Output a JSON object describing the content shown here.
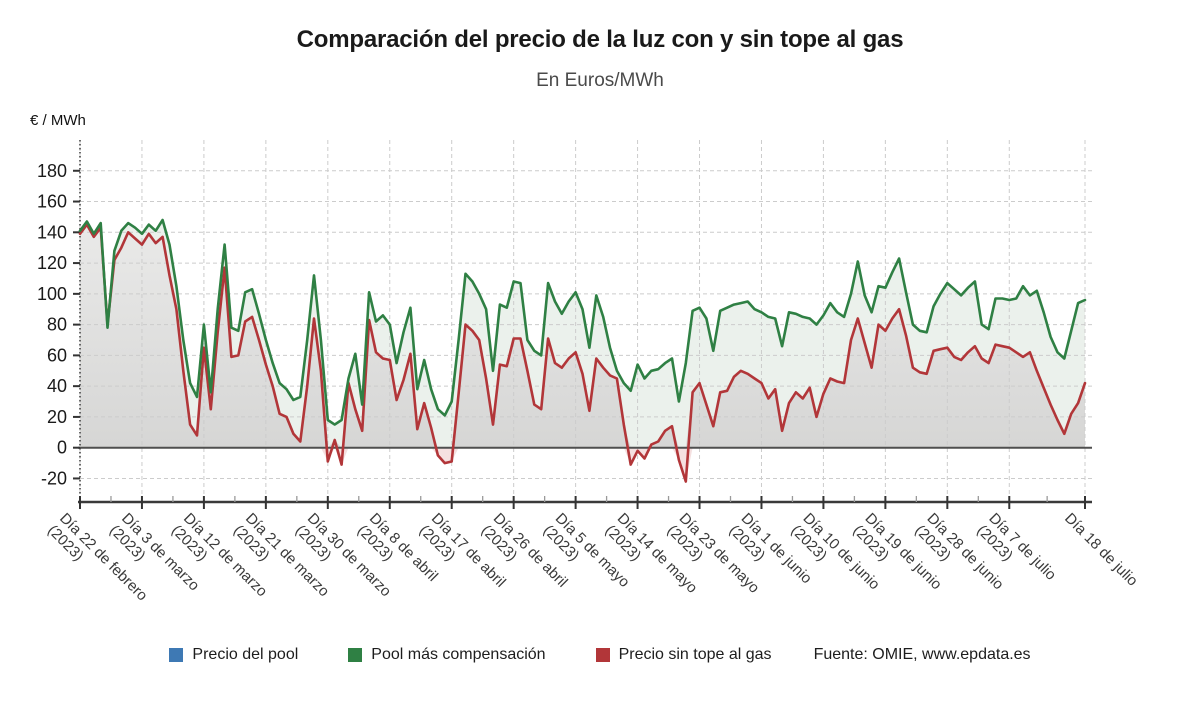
{
  "page": {
    "title": "Comparación del precio de la luz con y sin tope al gas",
    "subtitle": "En Euros/MWh",
    "unit_label": "€ / MWh"
  },
  "legend": {
    "items": [
      {
        "label": "Precio del pool",
        "color": "#3e79b4"
      },
      {
        "label": "Pool más compensación",
        "color": "#2f8044"
      },
      {
        "label": "Precio sin tope al gas",
        "color": "#b23639"
      }
    ],
    "source": "Fuente: OMIE, www.epdata.es"
  },
  "colors": {
    "grid": "#cccccc",
    "axis": "#3a3a3a",
    "zero_line": "#4f4f4f",
    "tick_label": "#1a1a1a",
    "x_label": "#3a3a3a",
    "fill_between": "#ebf1ec",
    "fill_under_red_top": "#f1f1f0",
    "fill_under_red_bottom": "#d6d6d5",
    "fill_negative": "#f5e0e0"
  },
  "chart_data": {
    "type": "line",
    "title": "Comparación del precio de la luz con y sin tope al gas",
    "subtitle": "En Euros/MWh",
    "ylabel": "€ / MWh",
    "ylim": [
      -34,
      200
    ],
    "grid": true,
    "legend_position": "bottom",
    "y_ticks": [
      180,
      160,
      140,
      120,
      100,
      80,
      60,
      40,
      20,
      0,
      -20
    ],
    "x_range_days": 146,
    "x_ticks": [
      {
        "day": 0,
        "label": "Día 22 de febrero",
        "year": "(2023)"
      },
      {
        "day": 9,
        "label": "Día 3 de marzo",
        "year": "(2023)"
      },
      {
        "day": 18,
        "label": "Día 12 de marzo",
        "year": "(2023)"
      },
      {
        "day": 27,
        "label": "Día 21 de marzo",
        "year": "(2023)"
      },
      {
        "day": 36,
        "label": "Día 30 de marzo",
        "year": "(2023)"
      },
      {
        "day": 45,
        "label": "Día 8 de abril",
        "year": "(2023)"
      },
      {
        "day": 54,
        "label": "Día 17 de abril",
        "year": "(2023)"
      },
      {
        "day": 63,
        "label": "Día 26 de abril",
        "year": "(2023)"
      },
      {
        "day": 72,
        "label": "Día 5 de mayo",
        "year": "(2023)"
      },
      {
        "day": 81,
        "label": "Día 14 de mayo",
        "year": "(2023)"
      },
      {
        "day": 90,
        "label": "Día 23 de mayo",
        "year": "(2023)"
      },
      {
        "day": 99,
        "label": "Día 1 de junio",
        "year": "(2023)"
      },
      {
        "day": 108,
        "label": "Día 10 de junio",
        "year": "(2023)"
      },
      {
        "day": 117,
        "label": "Día 19 de junio",
        "year": "(2023)"
      },
      {
        "day": 126,
        "label": "Día 28 de junio",
        "year": "(2023)"
      },
      {
        "day": 135,
        "label": "Día 7 de julio",
        "year": "(2023)"
      },
      {
        "day": 146,
        "label": "Día 18 de julio",
        "year": ""
      }
    ],
    "legend_only_series": [
      {
        "name": "Precio del pool",
        "color": "#3e79b4"
      }
    ],
    "series": [
      {
        "name": "Pool más compensación",
        "color": "#2f8044",
        "values": [
          141,
          147,
          139,
          146,
          78,
          128,
          141,
          146,
          143,
          139,
          145,
          141,
          148,
          132,
          105,
          70,
          42,
          33,
          80,
          36,
          90,
          132,
          78,
          76,
          101,
          103,
          87,
          70,
          55,
          42,
          38,
          31,
          33,
          70,
          112,
          70,
          18,
          15,
          18,
          45,
          61,
          28,
          101,
          82,
          86,
          80,
          55,
          75,
          91,
          38,
          57,
          38,
          25,
          21,
          30,
          70,
          113,
          108,
          100,
          90,
          50,
          93,
          91,
          108,
          107,
          70,
          63,
          60,
          107,
          95,
          87,
          95,
          101,
          90,
          65,
          99,
          85,
          65,
          50,
          42,
          37,
          54,
          45,
          50,
          51,
          55,
          58,
          30,
          55,
          89,
          91,
          84,
          63,
          89,
          91,
          93,
          94,
          95,
          90,
          88,
          85,
          84,
          66,
          88,
          87,
          85,
          84,
          80,
          86,
          94,
          88,
          85,
          100,
          121,
          99,
          88,
          105,
          104,
          114,
          123,
          101,
          80,
          76,
          75,
          92,
          100,
          107,
          103,
          99,
          104,
          108,
          80,
          77,
          97,
          97,
          96,
          97,
          105,
          99,
          102,
          88,
          72,
          62,
          58,
          76,
          94,
          96
        ]
      },
      {
        "name": "Precio sin tope al gas",
        "color": "#b23639",
        "values": [
          139,
          145,
          137,
          143,
          80,
          122,
          130,
          140,
          136,
          132,
          139,
          133,
          137,
          112,
          90,
          50,
          15,
          8,
          65,
          25,
          75,
          117,
          59,
          60,
          82,
          85,
          70,
          54,
          40,
          22,
          20,
          9,
          4,
          40,
          84,
          50,
          -9,
          5,
          -11,
          42,
          25,
          11,
          83,
          62,
          58,
          57,
          31,
          44,
          61,
          12,
          29,
          13,
          -5,
          -10,
          -9,
          35,
          80,
          76,
          70,
          45,
          15,
          54,
          53,
          71,
          71,
          50,
          28,
          25,
          71,
          55,
          52,
          58,
          62,
          48,
          24,
          58,
          52,
          47,
          45,
          15,
          -11,
          -2,
          -7,
          2,
          4,
          11,
          14,
          -8,
          -22,
          36,
          42,
          28,
          14,
          36,
          37,
          46,
          50,
          48,
          45,
          42,
          32,
          38,
          11,
          29,
          36,
          32,
          39,
          20,
          35,
          45,
          43,
          42,
          70,
          84,
          68,
          52,
          80,
          76,
          84,
          90,
          73,
          52,
          49,
          48,
          63,
          64,
          65,
          59,
          57,
          62,
          66,
          58,
          55,
          67,
          66,
          65,
          62,
          59,
          62,
          50,
          39,
          28,
          18,
          9,
          22,
          29,
          42
        ]
      }
    ]
  }
}
